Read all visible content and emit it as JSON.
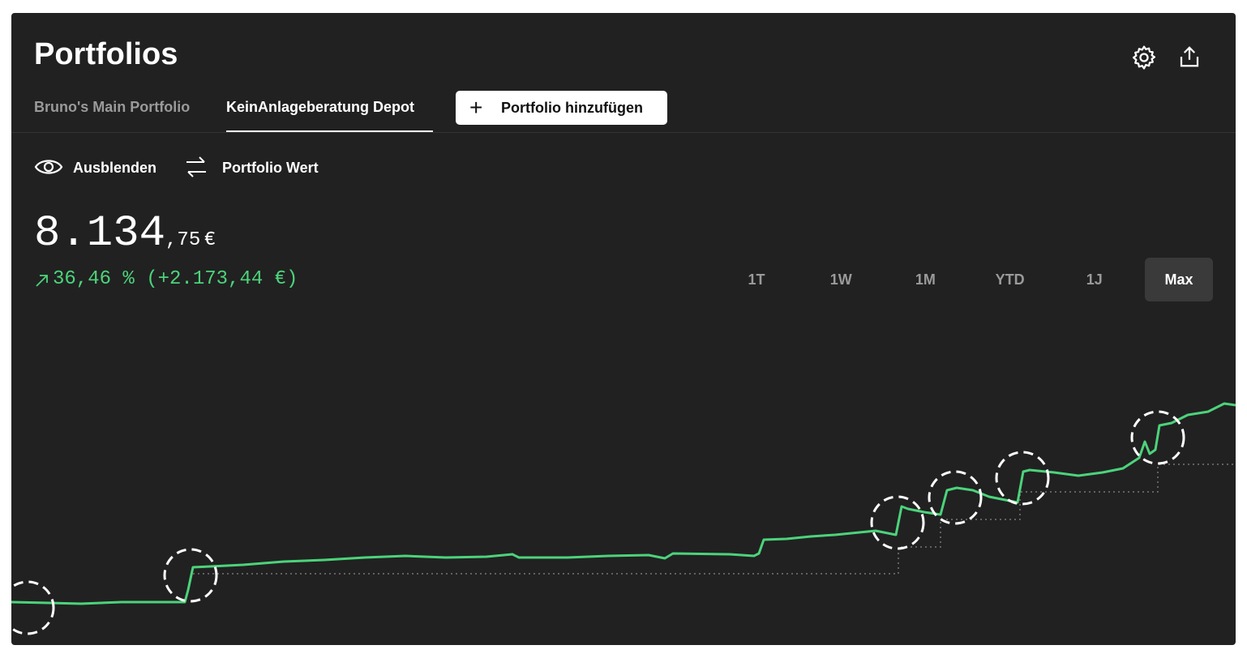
{
  "header": {
    "title": "Portfolios"
  },
  "tabs": [
    "Bruno's Main Portfolio",
    "KeinAnlageberatung Depot"
  ],
  "add_button": "Portfolio hinzufügen",
  "actions": [
    "Ausblenden",
    "Portfolio Wert"
  ],
  "value": {
    "main": "8.134",
    "decimals": ",75",
    "currency": "€",
    "change": "36,46 % (+2.173,44 €)"
  },
  "ranges": [
    "1T",
    "1W",
    "1M",
    "YTD",
    "1J",
    "Max"
  ]
}
